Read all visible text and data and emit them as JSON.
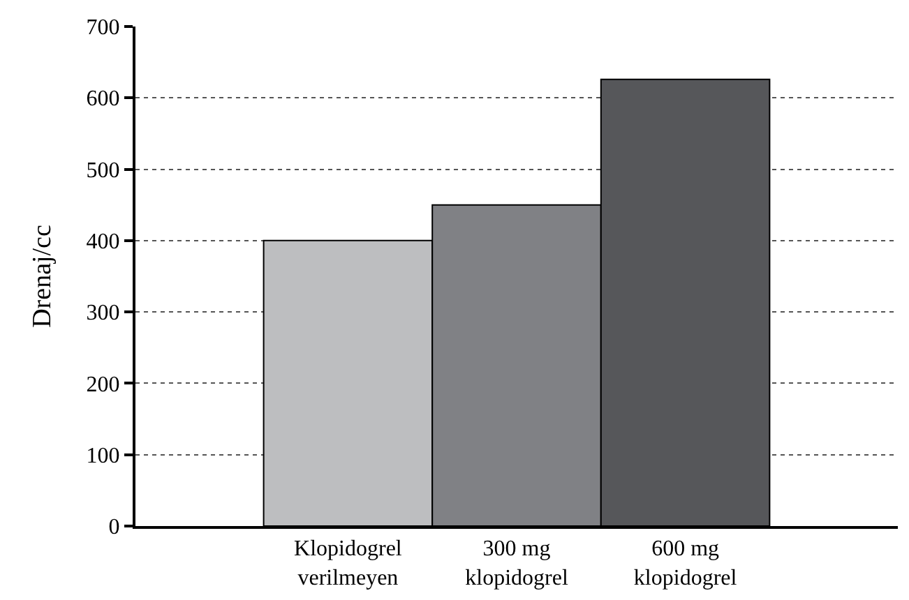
{
  "chart_data": {
    "type": "bar",
    "ylabel": "Drenaj/cc",
    "categories": [
      "Klopidogrel verilmeyen",
      "300 mg klopidogrel",
      "600 mg klopidogrel"
    ],
    "values": [
      400,
      450,
      626
    ],
    "colors": [
      "#bdbec0",
      "#808185",
      "#56575a"
    ],
    "ylim": [
      0,
      700
    ],
    "yticks": [
      0,
      100,
      200,
      300,
      400,
      500,
      600,
      700
    ],
    "grid": "y"
  }
}
